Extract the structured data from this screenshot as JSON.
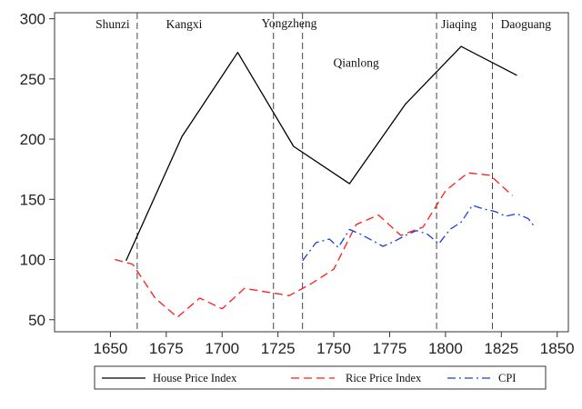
{
  "chart_data": {
    "type": "line",
    "title": "",
    "xlabel": "",
    "ylabel": "",
    "xlim": [
      1625,
      1855
    ],
    "ylim": [
      40,
      305
    ],
    "x_ticks": [
      1650,
      1675,
      1700,
      1725,
      1750,
      1775,
      1800,
      1825,
      1850
    ],
    "y_ticks": [
      50,
      100,
      150,
      200,
      250,
      300
    ],
    "grid": false,
    "legend_position": "bottom",
    "era_dividers": [
      1662,
      1723,
      1736,
      1796,
      1821
    ],
    "era_labels": [
      {
        "name": "Shunzi",
        "x": 1651,
        "y": 292
      },
      {
        "name": "Kangxi",
        "x": 1683,
        "y": 292
      },
      {
        "name": "Yongzheng",
        "x": 1730,
        "y": 293
      },
      {
        "name": "Qianlong",
        "x": 1760,
        "y": 260
      },
      {
        "name": "Jiaqing",
        "x": 1806,
        "y": 292
      },
      {
        "name": "Daoguang",
        "x": 1836,
        "y": 292
      }
    ],
    "series": [
      {
        "name": "House Price Index",
        "color": "#000000",
        "dash": "solid",
        "points": [
          [
            1657,
            99
          ],
          [
            1682,
            202
          ],
          [
            1707,
            272
          ],
          [
            1732,
            194
          ],
          [
            1757,
            163
          ],
          [
            1782,
            229
          ],
          [
            1807,
            277
          ],
          [
            1832,
            253
          ]
        ]
      },
      {
        "name": "Rice Price Index",
        "color": "#ff1a1a",
        "dash": "dashed",
        "points": [
          [
            1652,
            100
          ],
          [
            1660,
            96
          ],
          [
            1670,
            68
          ],
          [
            1680,
            52
          ],
          [
            1690,
            68
          ],
          [
            1700,
            59
          ],
          [
            1710,
            76
          ],
          [
            1720,
            73
          ],
          [
            1730,
            70
          ],
          [
            1740,
            80
          ],
          [
            1750,
            92
          ],
          [
            1760,
            129
          ],
          [
            1770,
            137
          ],
          [
            1780,
            120
          ],
          [
            1790,
            127
          ],
          [
            1800,
            157
          ],
          [
            1810,
            172
          ],
          [
            1820,
            170
          ],
          [
            1830,
            153
          ]
        ]
      },
      {
        "name": "CPI",
        "color": "#1a3fd8",
        "dash": "dashdot",
        "points": [
          [
            1736,
            99
          ],
          [
            1742,
            114
          ],
          [
            1748,
            117
          ],
          [
            1752,
            110
          ],
          [
            1757,
            125
          ],
          [
            1762,
            121
          ],
          [
            1767,
            116
          ],
          [
            1772,
            111
          ],
          [
            1777,
            115
          ],
          [
            1782,
            120
          ],
          [
            1787,
            124
          ],
          [
            1792,
            121
          ],
          [
            1797,
            113
          ],
          [
            1802,
            125
          ],
          [
            1807,
            131
          ],
          [
            1812,
            145
          ],
          [
            1817,
            142
          ],
          [
            1822,
            140
          ],
          [
            1827,
            136
          ],
          [
            1832,
            138
          ],
          [
            1837,
            134
          ],
          [
            1840,
            127
          ]
        ]
      }
    ]
  }
}
